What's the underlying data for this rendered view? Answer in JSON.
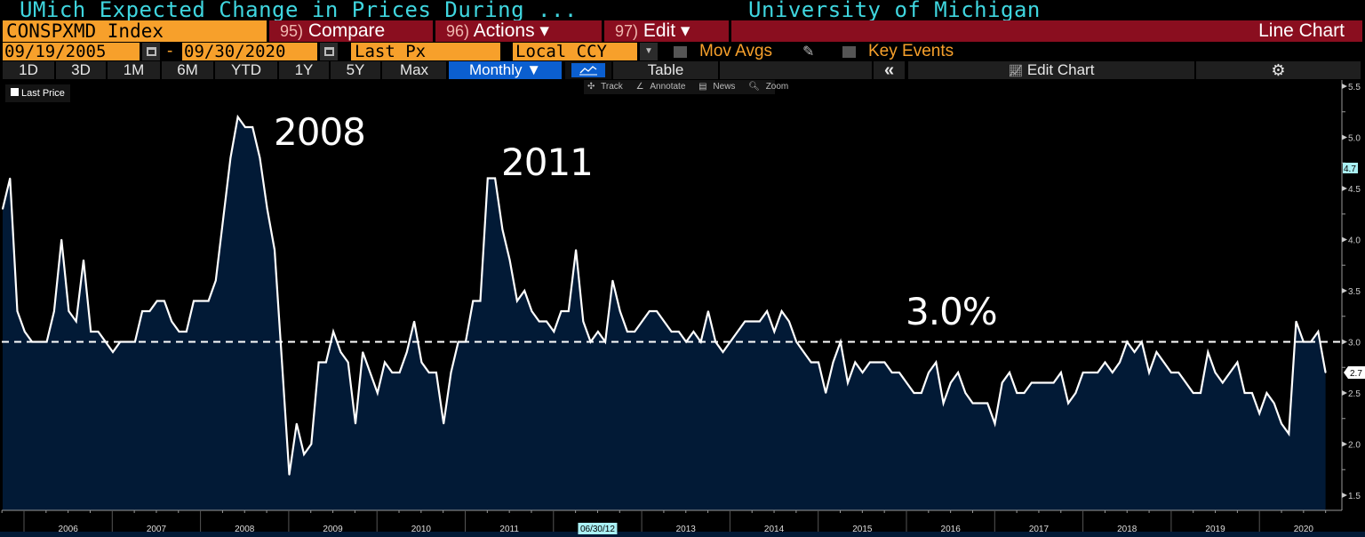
{
  "header": {
    "title": "UMich Expected Change in Prices During ...",
    "source": "University of Michigan"
  },
  "command_bar": {
    "ticker": "CONSPXMD Index",
    "compare": {
      "num": "95)",
      "label": "Compare"
    },
    "actions": {
      "num": "96)",
      "label": "Actions ▾"
    },
    "edit": {
      "num": "97)",
      "label": "Edit ▾"
    },
    "chart_type": "Line Chart"
  },
  "settings_bar": {
    "start_date": "09/19/2005",
    "separator": "-",
    "end_date": "09/30/2020",
    "field": "Last Px",
    "currency": "Local CCY",
    "mov_avgs": "Mov Avgs",
    "key_events": "Key Events"
  },
  "toolbar": {
    "ranges": [
      "1D",
      "3D",
      "1M",
      "6M",
      "YTD",
      "1Y",
      "5Y",
      "Max"
    ],
    "frequency": "Monthly ▼",
    "table": "Table",
    "collapse": "«",
    "edit_chart": "Edit Chart"
  },
  "chart_tools": {
    "track": "Track",
    "annotate": "Annotate",
    "news": "News",
    "zoom": "Zoom"
  },
  "legend": {
    "series": "Last Price"
  },
  "annotations": {
    "peak_2008": "2008",
    "peak_2011": "2011",
    "reference": "3.0%"
  },
  "colors": {
    "fill": "#021a36",
    "line": "#ffffff",
    "title": "#3fd6df",
    "orange": "#f7a02b",
    "red": "#8a0e1f",
    "blue": "#0b5fd0"
  },
  "chart_data": {
    "type": "area",
    "series": [
      {
        "name": "Last Price",
        "values": [
          4.3,
          4.6,
          3.3,
          3.1,
          3.0,
          3.0,
          3.0,
          3.3,
          4.0,
          3.3,
          3.2,
          3.8,
          3.1,
          3.1,
          3.0,
          2.9,
          3.0,
          3.0,
          3.0,
          3.3,
          3.3,
          3.4,
          3.4,
          3.2,
          3.1,
          3.1,
          3.4,
          3.4,
          3.4,
          3.6,
          4.2,
          4.8,
          5.2,
          5.1,
          5.1,
          4.8,
          4.3,
          3.9,
          2.8,
          1.7,
          2.2,
          1.9,
          2.0,
          2.8,
          2.8,
          3.1,
          2.9,
          2.8,
          2.2,
          2.9,
          2.7,
          2.5,
          2.8,
          2.7,
          2.7,
          2.9,
          3.2,
          2.8,
          2.7,
          2.7,
          2.2,
          2.7,
          3.0,
          3.0,
          3.4,
          3.4,
          4.6,
          4.6,
          4.1,
          3.8,
          3.4,
          3.5,
          3.3,
          3.2,
          3.2,
          3.1,
          3.3,
          3.3,
          3.9,
          3.2,
          3.0,
          3.1,
          3.0,
          3.6,
          3.3,
          3.1,
          3.1,
          3.2,
          3.3,
          3.3,
          3.2,
          3.1,
          3.1,
          3.0,
          3.1,
          3.0,
          3.3,
          3.0,
          2.9,
          3.0,
          3.1,
          3.2,
          3.2,
          3.2,
          3.3,
          3.1,
          3.3,
          3.2,
          3.0,
          2.9,
          2.8,
          2.8,
          2.5,
          2.8,
          3.0,
          2.6,
          2.8,
          2.7,
          2.8,
          2.8,
          2.8,
          2.7,
          2.7,
          2.6,
          2.5,
          2.5,
          2.7,
          2.8,
          2.4,
          2.6,
          2.7,
          2.5,
          2.4,
          2.4,
          2.4,
          2.2,
          2.6,
          2.7,
          2.5,
          2.5,
          2.6,
          2.6,
          2.6,
          2.6,
          2.7,
          2.4,
          2.5,
          2.7,
          2.7,
          2.7,
          2.8,
          2.7,
          2.8,
          3.0,
          2.9,
          3.0,
          2.7,
          2.9,
          2.8,
          2.7,
          2.7,
          2.6,
          2.5,
          2.5,
          2.9,
          2.7,
          2.6,
          2.7,
          2.8,
          2.5,
          2.5,
          2.3,
          2.5,
          2.4,
          2.2,
          2.1,
          3.2,
          3.0,
          3.0,
          3.1,
          2.7
        ]
      }
    ],
    "x": [
      "2005-09",
      "2005-10",
      "2005-11",
      "2005-12",
      "2006-01",
      "2006-02",
      "2006-03",
      "2006-04",
      "2006-05",
      "2006-06",
      "2006-07",
      "2006-08",
      "2006-09",
      "2006-10",
      "2006-11",
      "2006-12",
      "2007-01",
      "2007-02",
      "2007-03",
      "2007-04",
      "2007-05",
      "2007-06",
      "2007-07",
      "2007-08",
      "2007-09",
      "2007-10",
      "2007-11",
      "2007-12",
      "2008-01",
      "2008-02",
      "2008-03",
      "2008-04",
      "2008-05",
      "2008-06",
      "2008-07",
      "2008-08",
      "2008-09",
      "2008-10",
      "2008-11",
      "2008-12",
      "2009-01",
      "2009-02",
      "2009-03",
      "2009-04",
      "2009-05",
      "2009-06",
      "2009-07",
      "2009-08",
      "2009-09",
      "2009-10",
      "2009-11",
      "2009-12",
      "2010-01",
      "2010-02",
      "2010-03",
      "2010-04",
      "2010-05",
      "2010-06",
      "2010-07",
      "2010-08",
      "2010-09",
      "2010-10",
      "2010-11",
      "2010-12",
      "2011-01",
      "2011-02",
      "2011-03",
      "2011-04",
      "2011-05",
      "2011-06",
      "2011-07",
      "2011-08",
      "2011-09",
      "2011-10",
      "2011-11",
      "2011-12",
      "2012-01",
      "2012-02",
      "2012-03",
      "2012-04",
      "2012-05",
      "2012-06",
      "2012-07",
      "2012-08",
      "2012-09",
      "2012-10",
      "2012-11",
      "2012-12",
      "2013-01",
      "2013-02",
      "2013-03",
      "2013-04",
      "2013-05",
      "2013-06",
      "2013-07",
      "2013-08",
      "2013-09",
      "2013-10",
      "2013-11",
      "2013-12",
      "2014-01",
      "2014-02",
      "2014-03",
      "2014-04",
      "2014-05",
      "2014-06",
      "2014-07",
      "2014-08",
      "2014-09",
      "2014-10",
      "2014-11",
      "2014-12",
      "2015-01",
      "2015-02",
      "2015-03",
      "2015-04",
      "2015-05",
      "2015-06",
      "2015-07",
      "2015-08",
      "2015-09",
      "2015-10",
      "2015-11",
      "2015-12",
      "2016-01",
      "2016-02",
      "2016-03",
      "2016-04",
      "2016-05",
      "2016-06",
      "2016-07",
      "2016-08",
      "2016-09",
      "2016-10",
      "2016-11",
      "2016-12",
      "2017-01",
      "2017-02",
      "2017-03",
      "2017-04",
      "2017-05",
      "2017-06",
      "2017-07",
      "2017-08",
      "2017-09",
      "2017-10",
      "2017-11",
      "2017-12",
      "2018-01",
      "2018-02",
      "2018-03",
      "2018-04",
      "2018-05",
      "2018-06",
      "2018-07",
      "2018-08",
      "2018-09",
      "2018-10",
      "2018-11",
      "2018-12",
      "2019-01",
      "2019-02",
      "2019-03",
      "2019-04",
      "2019-05",
      "2019-06",
      "2019-07",
      "2019-08",
      "2019-09",
      "2019-10",
      "2019-11",
      "2019-12",
      "2020-01",
      "2020-02",
      "2020-03",
      "2020-04",
      "2020-05",
      "2020-06",
      "2020-07",
      "2020-08",
      "2020-09"
    ],
    "x_tick_labels": [
      "2006",
      "2007",
      "2008",
      "2009",
      "2010",
      "2011",
      "06/30/12",
      "2013",
      "2014",
      "2015",
      "2016",
      "2017",
      "2018",
      "2019",
      "2020"
    ],
    "y_tick_labels": [
      "5.5",
      "5.0",
      "4.5",
      "4.0",
      "3.5",
      "3.0",
      "2.5",
      "2.0",
      "1.5"
    ],
    "ylim": [
      1.5,
      5.5
    ],
    "reference_line": 3.0,
    "last_value_label": "2.7",
    "marker_label": "4.7",
    "y_axis_position": "right",
    "grid": false,
    "legend_position": "top-left"
  }
}
